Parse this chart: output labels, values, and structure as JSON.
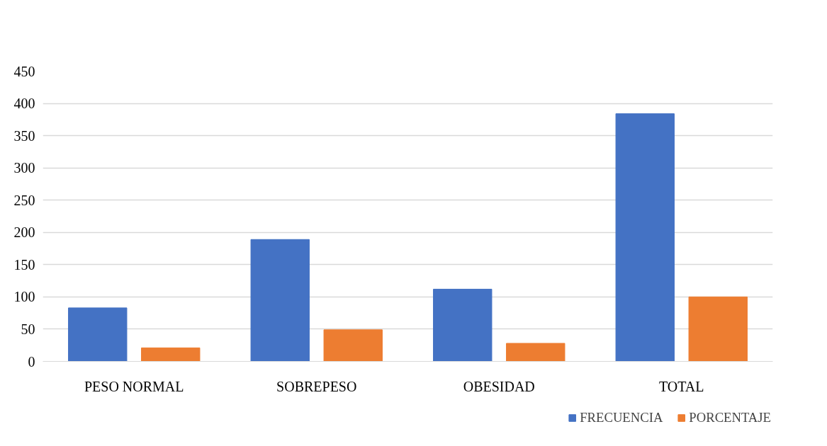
{
  "chart_data": {
    "type": "bar",
    "categories": [
      "PESO NORMAL",
      "SOBREPESO",
      "OBESIDAD",
      "TOTAL"
    ],
    "series": [
      {
        "name": "FRECUENCIA",
        "color": "#4472c4",
        "values": [
          83,
          189,
          112,
          384
        ]
      },
      {
        "name": "PORCENTAJE",
        "color": "#ed7d31",
        "values": [
          21,
          49,
          28,
          100
        ]
      }
    ],
    "ylim": [
      0,
      450
    ],
    "yticks": [
      0,
      50,
      100,
      150,
      200,
      250,
      300,
      350,
      400,
      450
    ],
    "grid": "y",
    "legend": "bottom"
  }
}
